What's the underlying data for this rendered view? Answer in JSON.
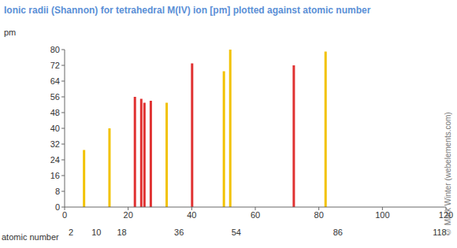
{
  "chart_data": {
    "type": "bar",
    "title": "Ionic radii (Shannon) for tetrahedral M(IV) ion [pm] plotted against atomic number",
    "y_label": "pm",
    "x_label": "atomic number",
    "copyright": "© Mark Winter (webelements.com)",
    "x": [
      6,
      14,
      22,
      24,
      25,
      27,
      32,
      40,
      50,
      52,
      72,
      82
    ],
    "values": [
      29,
      40,
      56,
      55,
      53,
      54,
      53,
      73,
      69,
      80,
      72,
      79
    ],
    "colors": [
      "#f2c200",
      "#f2c200",
      "#e03131",
      "#e03131",
      "#e03131",
      "#e03131",
      "#f2c200",
      "#e03131",
      "#f2c200",
      "#f2c200",
      "#e03131",
      "#f2c200"
    ],
    "xlim": [
      0,
      120
    ],
    "xticks": [
      0,
      20,
      40,
      60,
      80,
      100,
      120
    ],
    "x2ticks": [
      2,
      10,
      18,
      36,
      54,
      86,
      118
    ],
    "ylim": [
      0,
      80
    ],
    "yticks": [
      0,
      8,
      16,
      24,
      32,
      40,
      48,
      56,
      64,
      72,
      80
    ],
    "grid": false
  }
}
